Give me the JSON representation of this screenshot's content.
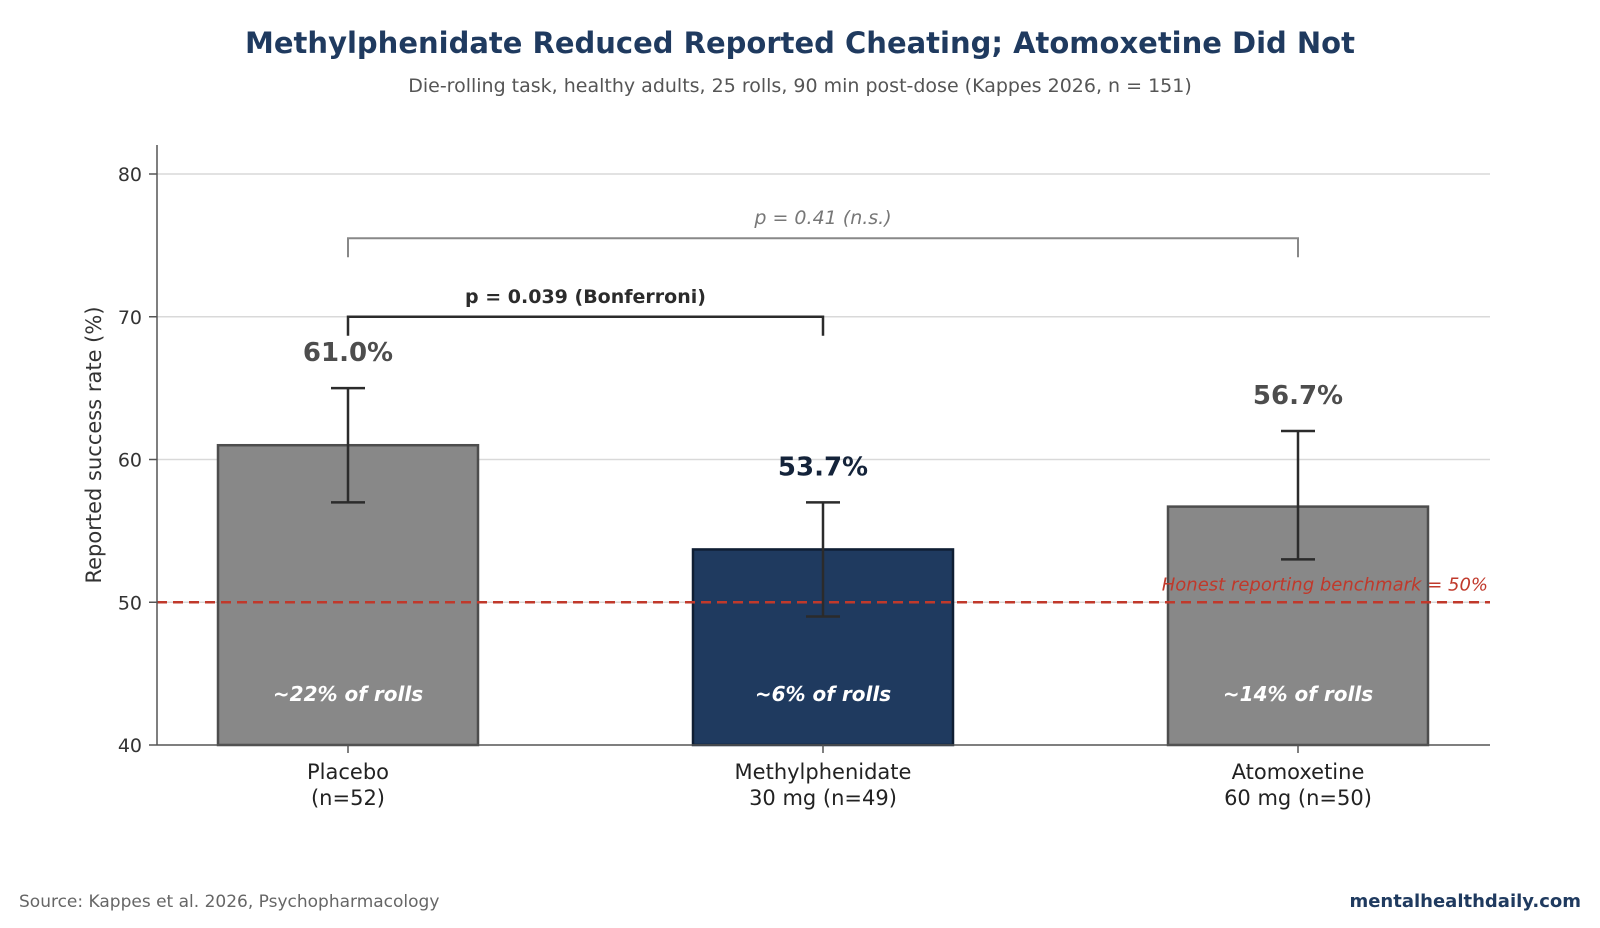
{
  "header": {
    "title": "Methylphenidate Reduced Reported Cheating; Atomoxetine Did Not",
    "subtitle": "Die-rolling task, healthy adults, 25 rolls, 90 min post-dose (Kappes 2026, n = 151)"
  },
  "footer": {
    "source": "Source: Kappes et al. 2026, Psychopharmacology",
    "brand": "mentalhealthdaily.com"
  },
  "colors": {
    "placebo_bar": "#888888",
    "methylphenidate_bar": "#1f3a5f",
    "atomoxetine_bar": "#888888",
    "benchmark_line": "#c0392b",
    "title": "#1f3a5f"
  },
  "chart_data": {
    "type": "bar",
    "title": "Methylphenidate Reduced Reported Cheating; Atomoxetine Did Not",
    "subtitle": "Die-rolling task, healthy adults, 25 rolls, 90 min post-dose (Kappes 2026, n = 151)",
    "xlabel": "",
    "ylabel": "Reported success rate (%)",
    "ylim": [
      40,
      82
    ],
    "yticks": [
      40,
      50,
      60,
      70,
      80
    ],
    "grid": true,
    "categories": [
      {
        "line1": "Placebo",
        "line2": "(n=52)"
      },
      {
        "line1": "Methylphenidate",
        "line2": "30 mg (n=49)"
      },
      {
        "line1": "Atomoxetine",
        "line2": "60 mg (n=50)"
      }
    ],
    "values": [
      61.0,
      53.7,
      56.7
    ],
    "error_low": [
      57,
      49,
      53
    ],
    "error_high": [
      65,
      57,
      62
    ],
    "value_labels": [
      "61.0%",
      "53.7%",
      "56.7%"
    ],
    "inner_labels": [
      "~22% of rolls",
      "~6% of rolls",
      "~14% of rolls"
    ],
    "benchmark": {
      "value": 50,
      "label": "Honest reporting benchmark = 50%"
    },
    "comparisons": [
      {
        "from": 0,
        "to": 1,
        "y": 70,
        "label": "p = 0.039 (Bonferroni)",
        "style": "bold"
      },
      {
        "from": 0,
        "to": 2,
        "y": 75.5,
        "label": "p = 0.41 (n.s.)",
        "style": "italic"
      }
    ]
  }
}
